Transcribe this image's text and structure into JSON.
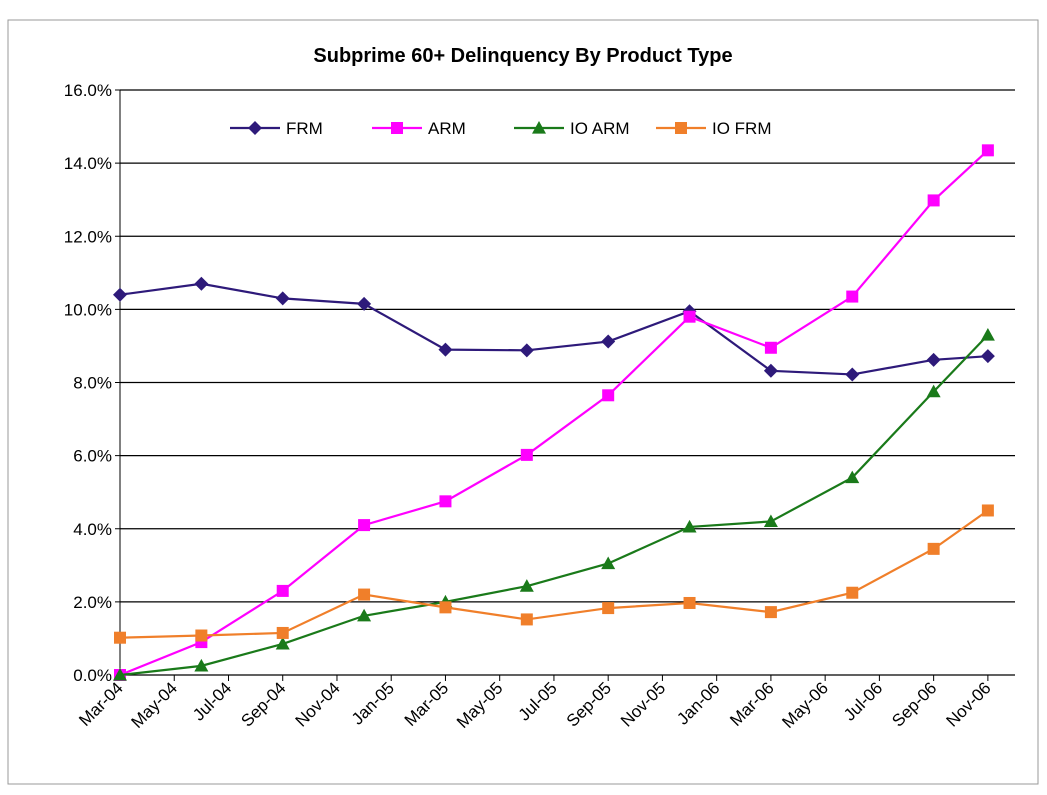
{
  "chart_data": {
    "type": "line",
    "title": "Subprime 60+ Delinquency By Product Type",
    "x": [
      "2004-03",
      "2004-06",
      "2004-09",
      "2004-12",
      "2005-03",
      "2005-06",
      "2005-09",
      "2005-12",
      "2006-03",
      "2006-06",
      "2006-09",
      "2006-11"
    ],
    "xlim": [
      "2004-03",
      "2006-12"
    ],
    "xticks": [
      {
        "value": "2004-03",
        "label": "Mar-04"
      },
      {
        "value": "2004-05",
        "label": "May-04"
      },
      {
        "value": "2004-07",
        "label": "Jul-04"
      },
      {
        "value": "2004-09",
        "label": "Sep-04"
      },
      {
        "value": "2004-11",
        "label": "Nov-04"
      },
      {
        "value": "2005-01",
        "label": "Jan-05"
      },
      {
        "value": "2005-03",
        "label": "Mar-05"
      },
      {
        "value": "2005-05",
        "label": "May-05"
      },
      {
        "value": "2005-07",
        "label": "Jul-05"
      },
      {
        "value": "2005-09",
        "label": "Sep-05"
      },
      {
        "value": "2005-11",
        "label": "Nov-05"
      },
      {
        "value": "2006-01",
        "label": "Jan-06"
      },
      {
        "value": "2006-03",
        "label": "Mar-06"
      },
      {
        "value": "2006-05",
        "label": "May-06"
      },
      {
        "value": "2006-07",
        "label": "Jul-06"
      },
      {
        "value": "2006-09",
        "label": "Sep-06"
      },
      {
        "value": "2006-11",
        "label": "Nov-06"
      }
    ],
    "ylim": [
      0,
      16
    ],
    "yticks": [
      {
        "value": 0,
        "label": "0.0%"
      },
      {
        "value": 2,
        "label": "2.0%"
      },
      {
        "value": 4,
        "label": "4.0%"
      },
      {
        "value": 6,
        "label": "6.0%"
      },
      {
        "value": 8,
        "label": "8.0%"
      },
      {
        "value": 10,
        "label": "10.0%"
      },
      {
        "value": 12,
        "label": "12.0%"
      },
      {
        "value": 14,
        "label": "14.0%"
      },
      {
        "value": 16,
        "label": "16.0%"
      }
    ],
    "grid": true,
    "series": [
      {
        "name": "FRM",
        "color": "#2e1a7a",
        "marker": "diamond",
        "values": [
          10.4,
          10.7,
          10.3,
          10.15,
          8.9,
          8.88,
          9.12,
          9.95,
          8.32,
          8.22,
          8.62,
          8.72
        ]
      },
      {
        "name": "ARM",
        "color": "#ff00ff",
        "marker": "square",
        "values": [
          0,
          0.9,
          2.3,
          4.1,
          4.75,
          6.02,
          7.65,
          9.8,
          8.95,
          10.35,
          12.98,
          14.35
        ]
      },
      {
        "name": "IO ARM",
        "color": "#1a7a1a",
        "marker": "triangle",
        "values": [
          0,
          0.25,
          0.85,
          1.62,
          2.0,
          2.43,
          3.05,
          4.05,
          4.2,
          5.4,
          7.75,
          9.3
        ]
      },
      {
        "name": "IO FRM",
        "color": "#f07f2a",
        "marker": "square",
        "values": [
          1.02,
          1.08,
          1.15,
          2.2,
          1.85,
          1.52,
          1.83,
          1.97,
          1.72,
          2.25,
          3.45,
          4.5
        ]
      }
    ]
  }
}
